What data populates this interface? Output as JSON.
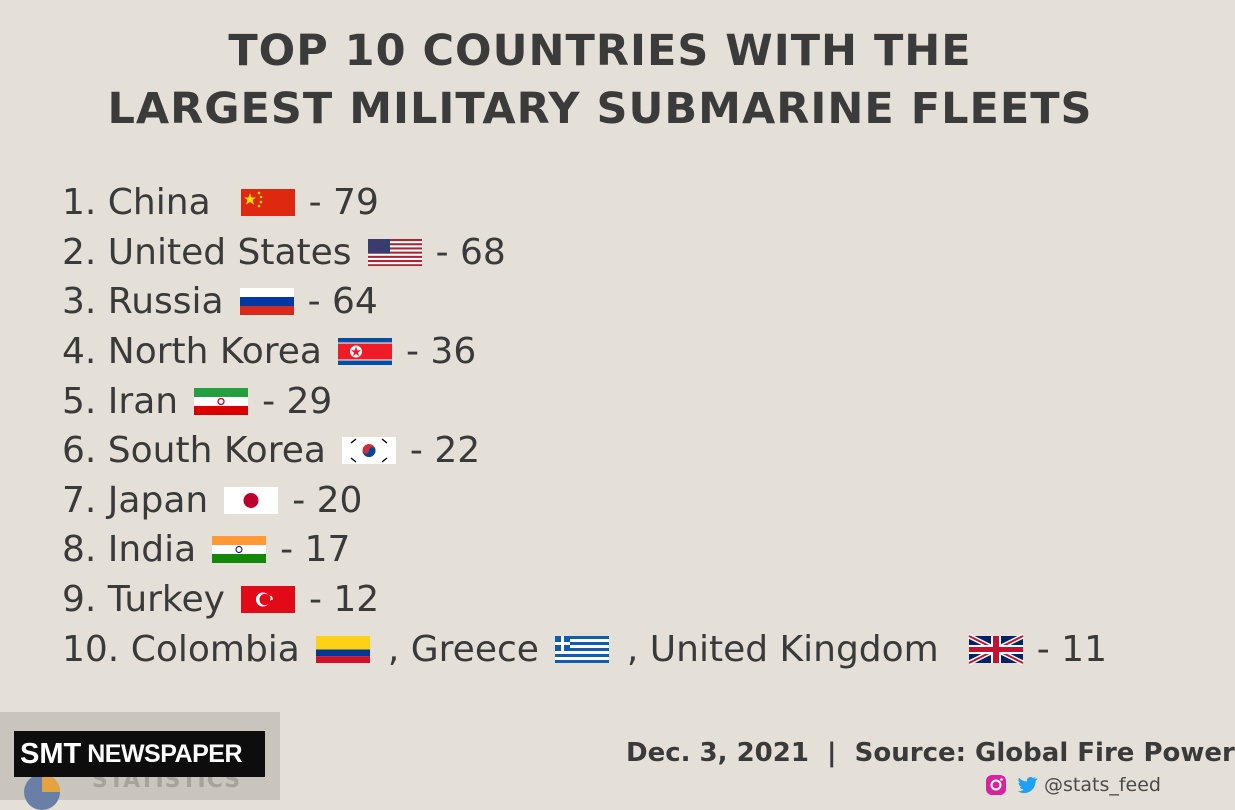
{
  "title": {
    "line1": "TOP 10 COUNTRIES WITH THE",
    "line2": "LARGEST MILITARY SUBMARINE FLEETS"
  },
  "rankings": [
    {
      "label": "1. China",
      "flag": "china-flag",
      "value": "- 79"
    },
    {
      "label": "2. United States",
      "flag": "usa-flag",
      "value": "- 68"
    },
    {
      "label": "3. Russia",
      "flag": "russia-flag",
      "value": "- 64"
    },
    {
      "label": "4. North Korea",
      "flag": "north-korea-flag",
      "value": "- 36"
    },
    {
      "label": "5. Iran",
      "flag": "iran-flag",
      "value": "- 29"
    },
    {
      "label": "6. South Korea",
      "flag": "south-korea-flag",
      "value": "- 22"
    },
    {
      "label": "7. Japan",
      "flag": "japan-flag",
      "value": "- 20"
    },
    {
      "label": "8. India",
      "flag": "india-flag",
      "value": "- 17"
    },
    {
      "label": "9. Turkey",
      "flag": "turkey-flag",
      "value": "- 12"
    }
  ],
  "tenth": {
    "label": "10. Colombia",
    "sep1": ", Greece",
    "sep2": ", United Kingdom",
    "value": "- 11"
  },
  "footer": {
    "date_source": "Dec. 3, 2021  |  Source: Global Fire Power",
    "handle": "@stats_feed"
  },
  "watermark": {
    "brand": "SMT",
    "brand_rest": "NEWSPAPER",
    "sub": "STATISTICS"
  },
  "colors": {
    "background": "#e4e0d7",
    "text": "#3a3a3a"
  }
}
